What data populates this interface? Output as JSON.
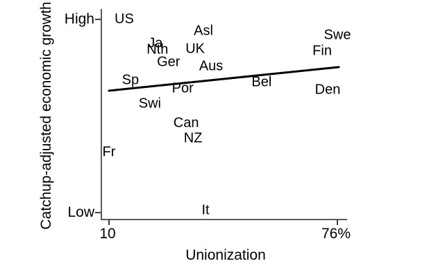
{
  "figure": {
    "background": "#ffffff",
    "text_color": "#000000",
    "axis_line_color": "#5a5a5a",
    "tick_color": "#3d3d3d",
    "trendline_color": "#000000"
  },
  "axes": {
    "y_title": "Catchup-adjusted economic growth",
    "x_title": "Unionization",
    "y_ticks": [
      {
        "label": "High",
        "y": 1.0
      },
      {
        "label": "Low",
        "y": 0.0
      }
    ],
    "x_ticks": [
      {
        "label": "10",
        "x": 10
      },
      {
        "label": "76%",
        "x": 76
      }
    ]
  },
  "chart_data": {
    "type": "scatter",
    "title": "",
    "xlabel": "Unionization",
    "ylabel": "Catchup-adjusted economic growth",
    "x_range": [
      10,
      76
    ],
    "y_range": [
      "Low",
      "High"
    ],
    "marker_style": "country-abbreviation-text-labels",
    "grid": false,
    "legend": false,
    "points": [
      {
        "label": "US",
        "x": 14.4,
        "y": 1.0
      },
      {
        "label": "Asl",
        "x": 37.3,
        "y": 0.939
      },
      {
        "label": "Swe",
        "x": 76.0,
        "y": 0.918
      },
      {
        "label": "Ja",
        "x": 23.4,
        "y": 0.875
      },
      {
        "label": "UK",
        "x": 34.9,
        "y": 0.846
      },
      {
        "label": "Nth",
        "x": 24.0,
        "y": 0.842
      },
      {
        "label": "Fin",
        "x": 71.6,
        "y": 0.835
      },
      {
        "label": "Ger",
        "x": 27.2,
        "y": 0.778
      },
      {
        "label": "Aus",
        "x": 39.5,
        "y": 0.756
      },
      {
        "label": "Sp",
        "x": 16.2,
        "y": 0.685
      },
      {
        "label": "Bel",
        "x": 54.1,
        "y": 0.674
      },
      {
        "label": "Por",
        "x": 31.3,
        "y": 0.642
      },
      {
        "label": "Den",
        "x": 73.2,
        "y": 0.634
      },
      {
        "label": "Swi",
        "x": 21.8,
        "y": 0.563
      },
      {
        "label": "Can",
        "x": 32.3,
        "y": 0.462
      },
      {
        "label": "NZ",
        "x": 34.3,
        "y": 0.384
      },
      {
        "label": "Fr",
        "x": 10.0,
        "y": 0.312
      },
      {
        "label": "It",
        "x": 37.9,
        "y": 0.011
      }
    ],
    "trendline": {
      "x1": 10.0,
      "y1": 0.631,
      "x2": 76.4,
      "y2": 0.753
    }
  }
}
